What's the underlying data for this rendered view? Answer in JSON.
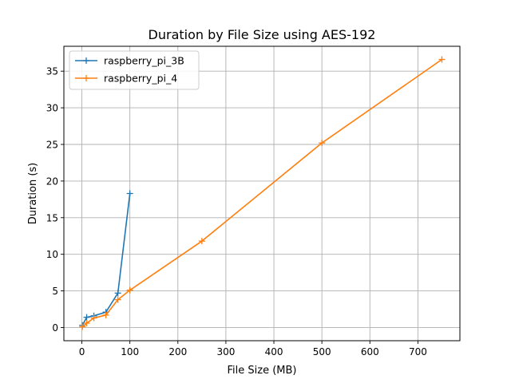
{
  "chart_data": {
    "type": "line",
    "title": "Duration by File Size using AES-192",
    "xlabel": "File Size (MB)",
    "ylabel": "Duration (s)",
    "xlim": [
      -37.5,
      787.5
    ],
    "ylim": [
      -1.8,
      38.4
    ],
    "xticks": [
      0,
      100,
      200,
      300,
      400,
      500,
      600,
      700
    ],
    "yticks": [
      0,
      5,
      10,
      15,
      20,
      25,
      30,
      35
    ],
    "grid": true,
    "legend_position": "top-left",
    "marker": "plus",
    "series": [
      {
        "name": "raspberry_pi_3B",
        "color": "#1f77b4",
        "x": [
          1,
          10,
          25,
          50,
          75,
          100
        ],
        "y": [
          0.3,
          1.4,
          1.6,
          2.1,
          4.7,
          18.3
        ]
      },
      {
        "name": "raspberry_pi_4",
        "color": "#ff7f0e",
        "x": [
          1,
          10,
          25,
          50,
          75,
          100,
          250,
          500,
          750
        ],
        "y": [
          0.1,
          0.6,
          1.3,
          1.7,
          3.8,
          5.1,
          11.8,
          25.2,
          36.6
        ]
      }
    ]
  }
}
